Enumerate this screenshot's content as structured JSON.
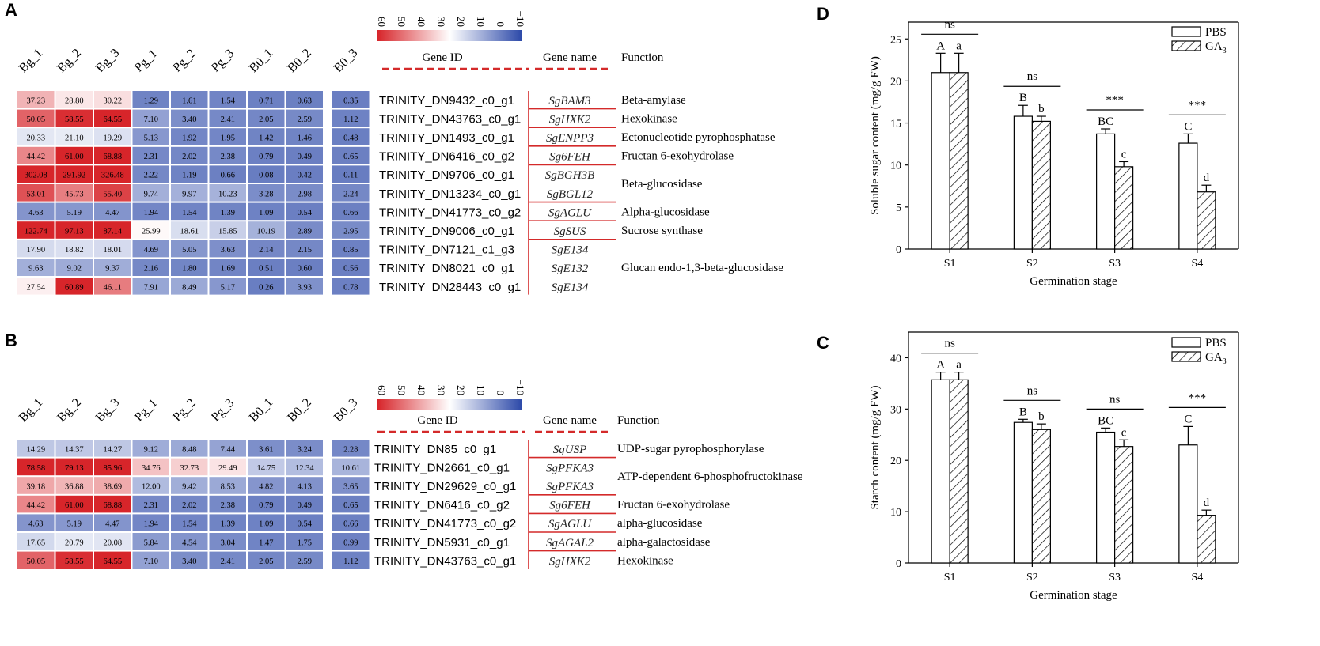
{
  "panels": {
    "A": "A",
    "B": "B",
    "C": "C",
    "D": "D"
  },
  "colors": {
    "high": "#d7252a",
    "mid": "#ffffff",
    "low": "#2b48a8",
    "line": "#d42a2a"
  },
  "chart_data": [
    {
      "type": "heatmap",
      "panel": "A",
      "columns": [
        "Bg_1",
        "Bg_2",
        "Bg_3",
        "Pg_1",
        "Pg_2",
        "Pg_3",
        "B0_1",
        "B0_2",
        "B0_3"
      ],
      "color_scale": {
        "min": -10,
        "max": 60,
        "ticks": [
          "60",
          "50",
          "40",
          "30",
          "20",
          "10",
          "0",
          "−10"
        ]
      },
      "header": {
        "gene_id": "Gene ID",
        "gene_name": "Gene name",
        "function": "Function"
      },
      "rows": [
        {
          "id": "TRINITY_DN9432_c0_g1",
          "name": "SgBAM3",
          "values": [
            37.23,
            28.8,
            30.22,
            1.29,
            1.61,
            1.54,
            0.71,
            0.63,
            0.35
          ],
          "labels": [
            "37.23",
            "28.80",
            "30.22",
            "1.29",
            "1.61",
            "1.54",
            "0.71",
            "0.63",
            "0.35"
          ]
        },
        {
          "id": "TRINITY_DN43763_c0_g1",
          "name": "SgHXK2",
          "values": [
            50.05,
            58.55,
            64.55,
            7.1,
            3.4,
            2.41,
            2.05,
            2.59,
            1.12
          ],
          "labels": [
            "50.05",
            "58.55",
            "64.55",
            "7.10",
            "3.40",
            "2.41",
            "2.05",
            "2.59",
            "1.12"
          ]
        },
        {
          "id": "TRINITY_DN1493_c0_g1",
          "name": "SgENPP3",
          "values": [
            20.33,
            21.1,
            19.29,
            5.13,
            1.92,
            1.95,
            1.42,
            1.46,
            0.48
          ],
          "labels": [
            "20.33",
            "21.10",
            "19.29",
            "5.13",
            "1.92",
            "1.95",
            "1.42",
            "1.46",
            "0.48"
          ]
        },
        {
          "id": "TRINITY_DN6416_c0_g2",
          "name": "Sg6FEH",
          "values": [
            44.42,
            61.0,
            68.88,
            2.31,
            2.02,
            2.38,
            0.79,
            0.49,
            0.65
          ],
          "labels": [
            "44.42",
            "61.00",
            "68.88",
            "2.31",
            "2.02",
            "2.38",
            "0.79",
            "0.49",
            "0.65"
          ]
        },
        {
          "id": "TRINITY_DN9706_c0_g1",
          "name": "SgBGH3B",
          "values": [
            302.08,
            291.92,
            326.48,
            2.22,
            1.19,
            0.66,
            0.08,
            0.42,
            0.11
          ],
          "labels": [
            "302.08",
            "291.92",
            "326.48",
            "2.22",
            "1.19",
            "0.66",
            "0.08",
            "0.42",
            "0.11"
          ]
        },
        {
          "id": "TRINITY_DN13234_c0_g1",
          "name": "SgBGL12",
          "values": [
            53.01,
            45.73,
            55.4,
            9.74,
            9.97,
            10.23,
            3.28,
            2.98,
            2.24
          ],
          "labels": [
            "53.01",
            "45.73",
            "55.40",
            "9.74",
            "9.97",
            "10.23",
            "3.28",
            "2.98",
            "2.24"
          ]
        },
        {
          "id": "TRINITY_DN41773_c0_g2",
          "name": "SgAGLU",
          "values": [
            4.63,
            5.19,
            4.47,
            1.94,
            1.54,
            1.39,
            1.09,
            0.54,
            0.66
          ],
          "labels": [
            "4.63",
            "5.19",
            "4.47",
            "1.94",
            "1.54",
            "1.39",
            "1.09",
            "0.54",
            "0.66"
          ]
        },
        {
          "id": "TRINITY_DN9006_c0_g1",
          "name": "SgSUS",
          "values": [
            122.74,
            97.13,
            87.14,
            25.99,
            18.61,
            15.85,
            10.19,
            2.89,
            2.95
          ],
          "labels": [
            "122.74",
            "97.13",
            "87.14",
            "25.99",
            "18.61",
            "15.85",
            "10.19",
            "2.89",
            "2.95"
          ]
        },
        {
          "id": "TRINITY_DN7121_c1_g3",
          "name": "SgE134",
          "values": [
            17.9,
            18.82,
            18.01,
            4.69,
            5.05,
            3.63,
            2.14,
            2.15,
            0.85
          ],
          "labels": [
            "17.90",
            "18.82",
            "18.01",
            "4.69",
            "5.05",
            "3.63",
            "2.14",
            "2.15",
            "0.85"
          ]
        },
        {
          "id": "TRINITY_DN8021_c0_g1",
          "name": "SgE132",
          "values": [
            9.63,
            9.02,
            9.37,
            2.16,
            1.8,
            1.69,
            0.51,
            0.6,
            0.56
          ],
          "labels": [
            "9.63",
            "9.02",
            "9.37",
            "2.16",
            "1.80",
            "1.69",
            "0.51",
            "0.60",
            "0.56"
          ]
        },
        {
          "id": "TRINITY_DN28443_c0_g1",
          "name": "SgE134",
          "values": [
            27.54,
            60.89,
            46.11,
            7.91,
            8.49,
            5.17,
            0.26,
            3.93,
            0.78
          ],
          "labels": [
            "27.54",
            "60.89",
            "46.11",
            "7.91",
            "8.49",
            "5.17",
            "0.26",
            "3.93",
            "0.78"
          ]
        }
      ],
      "functions": [
        {
          "text": "Beta-amylase",
          "row_from": 0,
          "row_to": 0
        },
        {
          "text": "Hexokinase",
          "row_from": 1,
          "row_to": 1
        },
        {
          "text": "Ectonucleotide pyrophosphatase",
          "row_from": 2,
          "row_to": 2
        },
        {
          "text": "Fructan 6-exohydrolase",
          "row_from": 3,
          "row_to": 3
        },
        {
          "text": "Beta-glucosidase",
          "row_from": 4,
          "row_to": 5
        },
        {
          "text": "Alpha-glucosidase",
          "row_from": 6,
          "row_to": 6
        },
        {
          "text": "Sucrose synthase",
          "row_from": 7,
          "row_to": 7
        },
        {
          "text": "Glucan endo-1,3-beta-glucosidase",
          "row_from": 8,
          "row_to": 10
        }
      ]
    },
    {
      "type": "heatmap",
      "panel": "B",
      "columns": [
        "Bg_1",
        "Bg_2",
        "Bg_3",
        "Pg_1",
        "Pg_2",
        "Pg_3",
        "B0_1",
        "B0_2",
        "B0_3"
      ],
      "color_scale": {
        "min": -10,
        "max": 60,
        "ticks": [
          "60",
          "50",
          "40",
          "30",
          "20",
          "10",
          "0",
          "−10"
        ]
      },
      "header": {
        "gene_id": "Gene ID",
        "gene_name": "Gene name",
        "function": "Function"
      },
      "rows": [
        {
          "id": "TRINITY_DN85_c0_g1",
          "name": "SgUSP",
          "values": [
            14.29,
            14.37,
            14.27,
            9.12,
            8.48,
            7.44,
            3.61,
            3.24,
            2.28
          ],
          "labels": [
            "14.29",
            "14.37",
            "14.27",
            "9.12",
            "8.48",
            "7.44",
            "3.61",
            "3.24",
            "2.28"
          ]
        },
        {
          "id": "TRINITY_DN2661_c0_g1",
          "name": "SgPFKA3",
          "values": [
            78.58,
            79.13,
            85.96,
            34.76,
            32.73,
            29.49,
            14.75,
            12.34,
            10.61
          ],
          "labels": [
            "78.58",
            "79.13",
            "85.96",
            "34.76",
            "32.73",
            "29.49",
            "14.75",
            "12.34",
            "10.61"
          ]
        },
        {
          "id": "TRINITY_DN29629_c0_g1",
          "name": "SgPFKA3",
          "values": [
            39.18,
            36.88,
            38.69,
            12.0,
            9.42,
            8.53,
            4.82,
            4.13,
            3.65
          ],
          "labels": [
            "39.18",
            "36.88",
            "38.69",
            "12.00",
            "9.42",
            "8.53",
            "4.82",
            "4.13",
            "3.65"
          ]
        },
        {
          "id": "TRINITY_DN6416_c0_g2",
          "name": "Sg6FEH",
          "values": [
            44.42,
            61.0,
            68.88,
            2.31,
            2.02,
            2.38,
            0.79,
            0.49,
            0.65
          ],
          "labels": [
            "44.42",
            "61.00",
            "68.88",
            "2.31",
            "2.02",
            "2.38",
            "0.79",
            "0.49",
            "0.65"
          ]
        },
        {
          "id": "TRINITY_DN41773_c0_g2",
          "name": "SgAGLU",
          "values": [
            4.63,
            5.19,
            4.47,
            1.94,
            1.54,
            1.39,
            1.09,
            0.54,
            0.66
          ],
          "labels": [
            "4.63",
            "5.19",
            "4.47",
            "1.94",
            "1.54",
            "1.39",
            "1.09",
            "0.54",
            "0.66"
          ]
        },
        {
          "id": "TRINITY_DN5931_c0_g1",
          "name": "SgAGAL2",
          "values": [
            17.65,
            20.79,
            20.08,
            5.84,
            4.54,
            3.04,
            1.47,
            1.75,
            0.99
          ],
          "labels": [
            "17.65",
            "20.79",
            "20.08",
            "5.84",
            "4.54",
            "3.04",
            "1.47",
            "1.75",
            "0.99"
          ]
        },
        {
          "id": "TRINITY_DN43763_c0_g1",
          "name": "SgHXK2",
          "values": [
            50.05,
            58.55,
            64.55,
            7.1,
            3.4,
            2.41,
            2.05,
            2.59,
            1.12
          ],
          "labels": [
            "50.05",
            "58.55",
            "64.55",
            "7.10",
            "3.40",
            "2.41",
            "2.05",
            "2.59",
            "1.12"
          ]
        }
      ],
      "functions": [
        {
          "text": "UDP-sugar pyrophosphorylase",
          "row_from": 0,
          "row_to": 0
        },
        {
          "text": "ATP-dependent 6-phosphofructokinase",
          "row_from": 1,
          "row_to": 2
        },
        {
          "text": "Fructan 6-exohydrolase",
          "row_from": 3,
          "row_to": 3
        },
        {
          "text": "alpha-glucosidase",
          "row_from": 4,
          "row_to": 4
        },
        {
          "text": "alpha-galactosidase",
          "row_from": 5,
          "row_to": 5
        },
        {
          "text": "Hexokinase",
          "row_from": 6,
          "row_to": 6
        }
      ]
    },
    {
      "type": "bar",
      "panel": "D",
      "ylabel": "Soluble sugar content (mg/g FW)",
      "xlabel": "Germination stage",
      "categories": [
        "S1",
        "S2",
        "S3",
        "S4"
      ],
      "ylim": [
        0,
        27
      ],
      "yticks": [
        0,
        5,
        10,
        15,
        20,
        25
      ],
      "series": [
        {
          "name": "PBS",
          "values": [
            21.0,
            15.8,
            13.7,
            12.6
          ],
          "errors": [
            2.3,
            1.3,
            0.6,
            1.1
          ],
          "letters": [
            "A",
            "B",
            "BC",
            "C"
          ]
        },
        {
          "name": "GA3",
          "values": [
            21.0,
            15.2,
            9.8,
            6.8
          ],
          "errors": [
            2.3,
            0.6,
            0.6,
            0.8
          ],
          "letters": [
            "a",
            "b",
            "c",
            "d"
          ]
        }
      ],
      "legend": {
        "pbs": "PBS",
        "ga_base": "GA",
        "ga_sub": "3"
      },
      "significance": [
        "ns",
        "ns",
        "***",
        "***"
      ]
    },
    {
      "type": "bar",
      "panel": "C",
      "ylabel": "Starch content (mg/g FW)",
      "xlabel": "Germination stage",
      "categories": [
        "S1",
        "S2",
        "S3",
        "S4"
      ],
      "ylim": [
        0,
        45
      ],
      "yticks": [
        0,
        10,
        20,
        30,
        40
      ],
      "series": [
        {
          "name": "PBS",
          "values": [
            35.7,
            27.4,
            25.5,
            23.0
          ],
          "errors": [
            1.5,
            0.6,
            0.8,
            3.6
          ],
          "letters": [
            "A",
            "B",
            "BC",
            "C"
          ]
        },
        {
          "name": "GA3",
          "values": [
            35.7,
            26.0,
            22.7,
            9.3
          ],
          "errors": [
            1.5,
            1.1,
            1.3,
            1.0
          ],
          "letters": [
            "a",
            "b",
            "c",
            "d"
          ]
        }
      ],
      "legend": {
        "pbs": "PBS",
        "ga_base": "GA",
        "ga_sub": "3"
      },
      "significance": [
        "ns",
        "ns",
        "ns",
        "***"
      ]
    }
  ]
}
